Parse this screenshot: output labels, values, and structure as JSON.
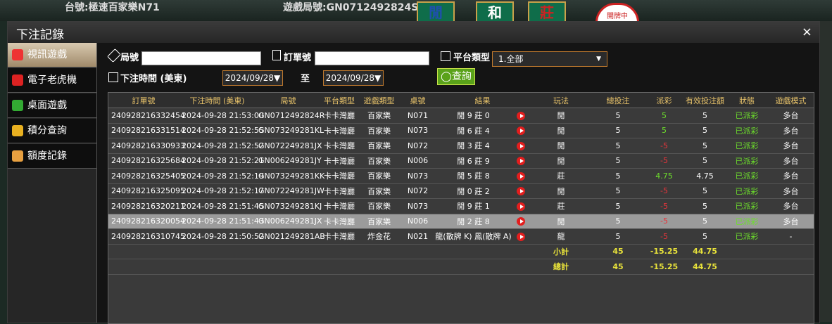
{
  "background": {
    "table_label": "台號:極速百家樂N71",
    "round_label": "遊戲局號:GN0712492824S",
    "bet_spots": [
      "閒",
      "和",
      "莊"
    ],
    "status": "開牌中"
  },
  "dialog": {
    "title": "下注記錄",
    "close": "×"
  },
  "sidebar": [
    {
      "label": "視訊遊戲",
      "active": true
    },
    {
      "label": "電子老虎機",
      "active": false
    },
    {
      "label": "桌面遊戲",
      "active": false
    },
    {
      "label": "積分查詢",
      "active": false
    },
    {
      "label": "額度記錄",
      "active": false
    }
  ],
  "filters": {
    "round_label": "局號",
    "order_label": "訂單號",
    "platform_label": "平台類型",
    "platform_value": "1.全部",
    "time_label": "下注時間 (美東)",
    "date_from": "2024/09/28▼",
    "to": "至",
    "date_to": "2024/09/28▼",
    "search": "查詢"
  },
  "table": {
    "headers": [
      "訂單號",
      "下注時間 (美東)",
      "局號",
      "平台類型",
      "遊戲類型",
      "桌號",
      "結果",
      "玩法",
      "總投注",
      "派彩",
      "有效投注額",
      "狀態",
      "遊戲模式"
    ],
    "selected_row": 7,
    "rows": [
      [
        "240928216332454",
        "2024-09-28 21:53:00",
        "GN0712492824R",
        "卡卡灣廳",
        "百家樂",
        "N071",
        "閒 9 莊 0",
        "閒",
        "5",
        "5",
        "5",
        "已派彩",
        "多台"
      ],
      [
        "240928216331514",
        "2024-09-28 21:52:55",
        "GN073249281KL",
        "卡卡灣廳",
        "百家樂",
        "N073",
        "閒 6 莊 4",
        "閒",
        "5",
        "5",
        "5",
        "已派彩",
        "多台"
      ],
      [
        "240928216330933",
        "2024-09-28 21:52:52",
        "GN072249281JX",
        "卡卡灣廳",
        "百家樂",
        "N072",
        "閒 3 莊 4",
        "閒",
        "5",
        "-5",
        "5",
        "已派彩",
        "多台"
      ],
      [
        "240928216325684",
        "2024-09-28 21:52:21",
        "GN006249281JY",
        "卡卡灣廳",
        "百家樂",
        "N006",
        "閒 6 莊 9",
        "閒",
        "5",
        "-5",
        "5",
        "已派彩",
        "多台"
      ],
      [
        "240928216325405",
        "2024-09-28 21:52:19",
        "GN073249281KK",
        "卡卡灣廳",
        "百家樂",
        "N073",
        "閒 5 莊 8",
        "莊",
        "5",
        "4.75",
        "4.75",
        "已派彩",
        "多台"
      ],
      [
        "240928216325095",
        "2024-09-28 21:52:17",
        "GN072249281JW",
        "卡卡灣廳",
        "百家樂",
        "N072",
        "閒 0 莊 2",
        "閒",
        "5",
        "-5",
        "5",
        "已派彩",
        "多台"
      ],
      [
        "240928216320211",
        "2024-09-28 21:51:45",
        "GN073249281KJ",
        "卡卡灣廳",
        "百家樂",
        "N073",
        "閒 9 莊 1",
        "莊",
        "5",
        "-5",
        "5",
        "已派彩",
        "多台"
      ],
      [
        "240928216320054",
        "2024-09-28 21:51:43",
        "GN006249281JX",
        "卡卡灣廳",
        "百家樂",
        "N006",
        "閒 2 莊 8",
        "閒",
        "5",
        "-5",
        "5",
        "已派彩",
        "多台"
      ],
      [
        "240928216310745",
        "2024-09-28 21:50:52",
        "GN021249281AB",
        "卡卡灣廳",
        "炸金花",
        "N021",
        "龍(散牌 K) 鳳(散牌 A)",
        "龍",
        "5",
        "-5",
        "5",
        "已派彩",
        "-"
      ]
    ],
    "summary": [
      {
        "label": "小計",
        "bet": "45",
        "payout": "-15.25",
        "valid": "44.75"
      },
      {
        "label": "總計",
        "bet": "45",
        "payout": "-15.25",
        "valid": "44.75"
      }
    ]
  }
}
